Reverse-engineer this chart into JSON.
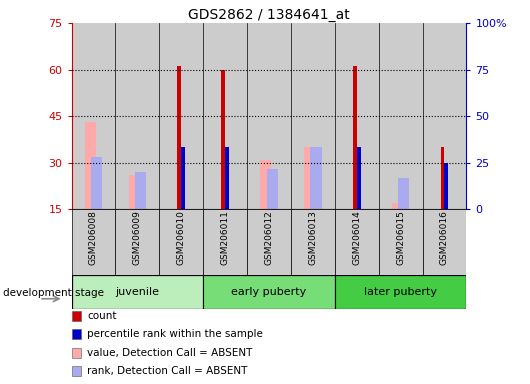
{
  "title": "GDS2862 / 1384641_at",
  "samples": [
    "GSM206008",
    "GSM206009",
    "GSM206010",
    "GSM206011",
    "GSM206012",
    "GSM206013",
    "GSM206014",
    "GSM206015",
    "GSM206016"
  ],
  "groups": [
    {
      "label": "juvenile",
      "span": [
        0,
        3
      ]
    },
    {
      "label": "early puberty",
      "span": [
        3,
        6
      ]
    },
    {
      "label": "later puberty",
      "span": [
        6,
        9
      ]
    }
  ],
  "group_colors": [
    "#bbeebb",
    "#77dd77",
    "#44cc44"
  ],
  "ylim_left": [
    15,
    75
  ],
  "ylim_right": [
    0,
    100
  ],
  "yticks_left": [
    15,
    30,
    45,
    60,
    75
  ],
  "yticks_right": [
    0,
    25,
    50,
    75,
    100
  ],
  "ytick_labels_right": [
    "0",
    "25",
    "50",
    "75",
    "100%"
  ],
  "count_values": [
    null,
    null,
    61,
    60,
    null,
    null,
    61,
    null,
    35
  ],
  "rank_values": [
    null,
    null,
    35,
    35,
    null,
    null,
    35,
    null,
    30
  ],
  "absent_value_values": [
    43,
    26,
    null,
    null,
    31,
    35,
    null,
    17,
    null
  ],
  "absent_rank_values": [
    32,
    27,
    null,
    null,
    28,
    35,
    null,
    25,
    null
  ],
  "count_color": "#cc0000",
  "rank_color": "#0000cc",
  "absent_value_color": "#ffaaaa",
  "absent_rank_color": "#aaaaee",
  "sample_bg_color": "#cccccc",
  "axis_left_color": "#cc0000",
  "axis_right_color": "#0000cc",
  "grid_dotted_at": [
    30,
    45,
    60
  ],
  "dev_stage_label": "development stage",
  "legend_items": [
    {
      "label": "count",
      "color": "#cc0000"
    },
    {
      "label": "percentile rank within the sample",
      "color": "#0000cc"
    },
    {
      "label": "value, Detection Call = ABSENT",
      "color": "#ffaaaa"
    },
    {
      "label": "rank, Detection Call = ABSENT",
      "color": "#aaaaee"
    }
  ]
}
